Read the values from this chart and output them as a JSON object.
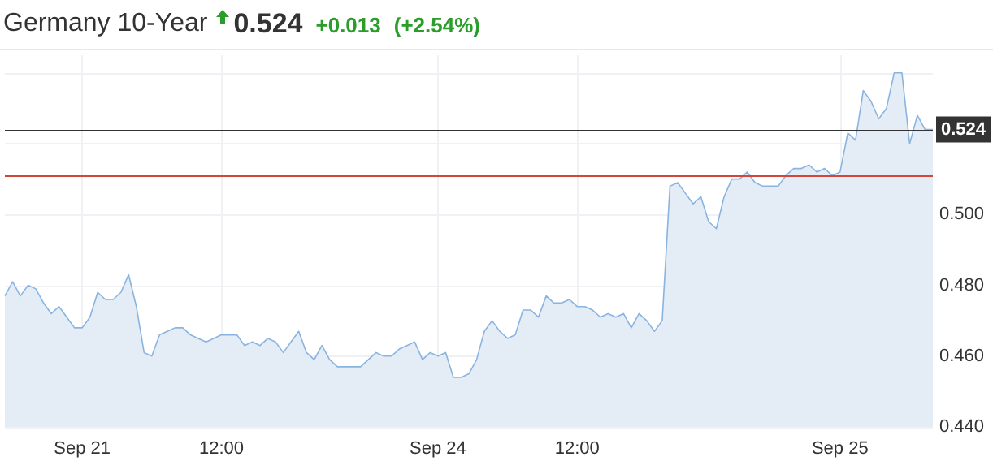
{
  "chart_data": {
    "type": "area",
    "title": "Germany 10-Year",
    "annotations": [
      "0.524",
      "+0.013",
      "(+2.54%)"
    ],
    "categories": [
      null,
      null,
      null,
      null,
      null,
      null,
      null,
      null,
      null,
      null,
      "Sep 21",
      null,
      null,
      null,
      null,
      null,
      null,
      null,
      null,
      null,
      null,
      null,
      null,
      null,
      null,
      null,
      null,
      null,
      "12:00",
      null,
      null,
      null,
      null,
      null,
      null,
      null,
      null,
      null,
      null,
      null,
      null,
      null,
      null,
      null,
      null,
      null,
      null,
      null,
      null,
      null,
      null,
      null,
      null,
      null,
      null,
      null,
      "Sep 24",
      null,
      null,
      null,
      null,
      null,
      null,
      null,
      null,
      null,
      null,
      null,
      null,
      null,
      null,
      null,
      null,
      null,
      "12:00",
      null,
      null,
      null,
      null,
      null,
      null,
      null,
      null,
      null,
      null,
      null,
      null,
      null,
      null,
      null,
      null,
      null,
      null,
      null,
      null,
      null,
      null,
      null,
      null,
      null,
      null,
      null,
      null,
      null,
      null,
      null,
      null,
      null,
      "Sep 25",
      null,
      null,
      null,
      null,
      null,
      null,
      null,
      null,
      null,
      null,
      null,
      null
    ],
    "series": [
      {
        "color": "#8ab4e0",
        "values": [
          0.477,
          0.481,
          0.477,
          0.48,
          0.479,
          0.475,
          0.472,
          0.474,
          0.471,
          0.468,
          0.468,
          0.471,
          0.478,
          0.476,
          0.476,
          0.478,
          0.483,
          0.474,
          0.461,
          0.46,
          0.466,
          0.467,
          0.468,
          0.468,
          0.466,
          0.465,
          0.464,
          0.465,
          0.466,
          0.466,
          0.466,
          0.463,
          0.464,
          0.463,
          0.465,
          0.464,
          0.461,
          0.464,
          0.467,
          0.461,
          0.459,
          0.463,
          0.459,
          0.457,
          0.457,
          0.457,
          0.457,
          0.459,
          0.461,
          0.46,
          0.46,
          0.462,
          0.463,
          0.464,
          0.459,
          0.461,
          0.46,
          0.461,
          0.454,
          0.454,
          0.455,
          0.459,
          0.467,
          0.47,
          0.467,
          0.465,
          0.466,
          0.473,
          0.473,
          0.471,
          0.477,
          0.475,
          0.475,
          0.476,
          0.474,
          0.474,
          0.473,
          0.471,
          0.472,
          0.471,
          0.472,
          0.468,
          0.472,
          0.47,
          0.467,
          0.47,
          0.508,
          0.509,
          0.506,
          0.503,
          0.505,
          0.498,
          0.496,
          0.505,
          0.51,
          0.51,
          0.512,
          0.509,
          0.508,
          0.508,
          0.508,
          0.511,
          0.513,
          0.513,
          0.514,
          0.512,
          0.513,
          0.511,
          0.512,
          0.523,
          0.521,
          0.535,
          0.532,
          0.527,
          0.53,
          0.54,
          0.54,
          0.52,
          0.528,
          0.524,
          0.524
        ]
      }
    ],
    "ylim": [
      0.44,
      0.545
    ],
    "yticks": [
      {
        "value": 0.44,
        "label": "0.440"
      },
      {
        "value": 0.46,
        "label": "0.460"
      },
      {
        "value": 0.48,
        "label": "0.480"
      },
      {
        "value": 0.5,
        "label": "0.500"
      },
      {
        "value": 0.52,
        "label": null
      },
      {
        "value": 0.54,
        "label": null
      }
    ],
    "ref_lines": [
      {
        "axis": "y",
        "value": 0.524,
        "label": "0.524",
        "color": "#333333"
      },
      {
        "axis": "y",
        "value": 0.511,
        "color": "#d2473b"
      }
    ],
    "grid": true,
    "marker": "none",
    "line_style": "solid"
  }
}
